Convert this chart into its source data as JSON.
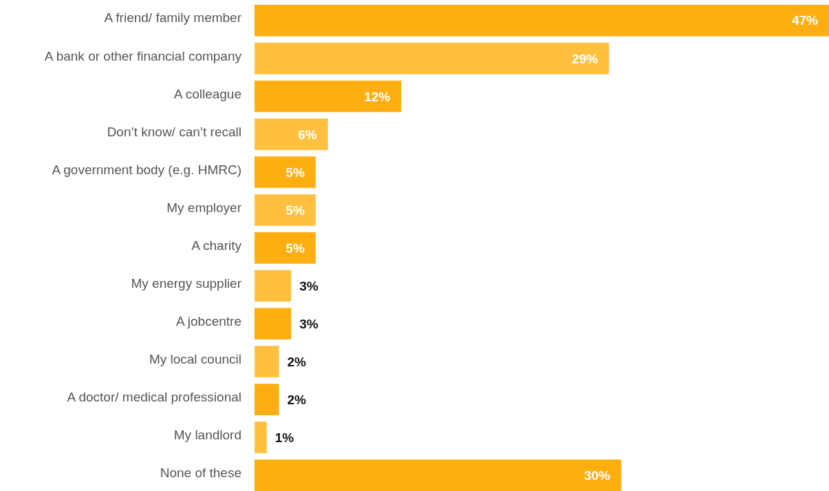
{
  "chart_data": {
    "type": "bar",
    "orientation": "horizontal",
    "categories": [
      "A friend/ family member",
      "A bank or other financial company",
      "A colleague",
      "Don’t know/ can’t recall",
      "A government body (e.g. HMRC)",
      "My employer",
      "A charity",
      "My energy supplier",
      "A jobcentre",
      "My local council",
      "A doctor/ medical professional",
      "My landlord",
      "None of these"
    ],
    "values": [
      47,
      29,
      12,
      6,
      5,
      5,
      5,
      3,
      3,
      2,
      2,
      1,
      30
    ],
    "colors": [
      "#ffae12",
      "#ffc040",
      "#ffae12",
      "#ffc040",
      "#ffae12",
      "#ffc040",
      "#ffae12",
      "#ffc040",
      "#ffae12",
      "#ffc040",
      "#ffae12",
      "#ffc040",
      "#ffae12"
    ],
    "value_labels": [
      "47%",
      "29%",
      "12%",
      "6%",
      "5%",
      "5%",
      "5%",
      "3%",
      "3%",
      "2%",
      "2%",
      "1%",
      "30%"
    ]
  }
}
